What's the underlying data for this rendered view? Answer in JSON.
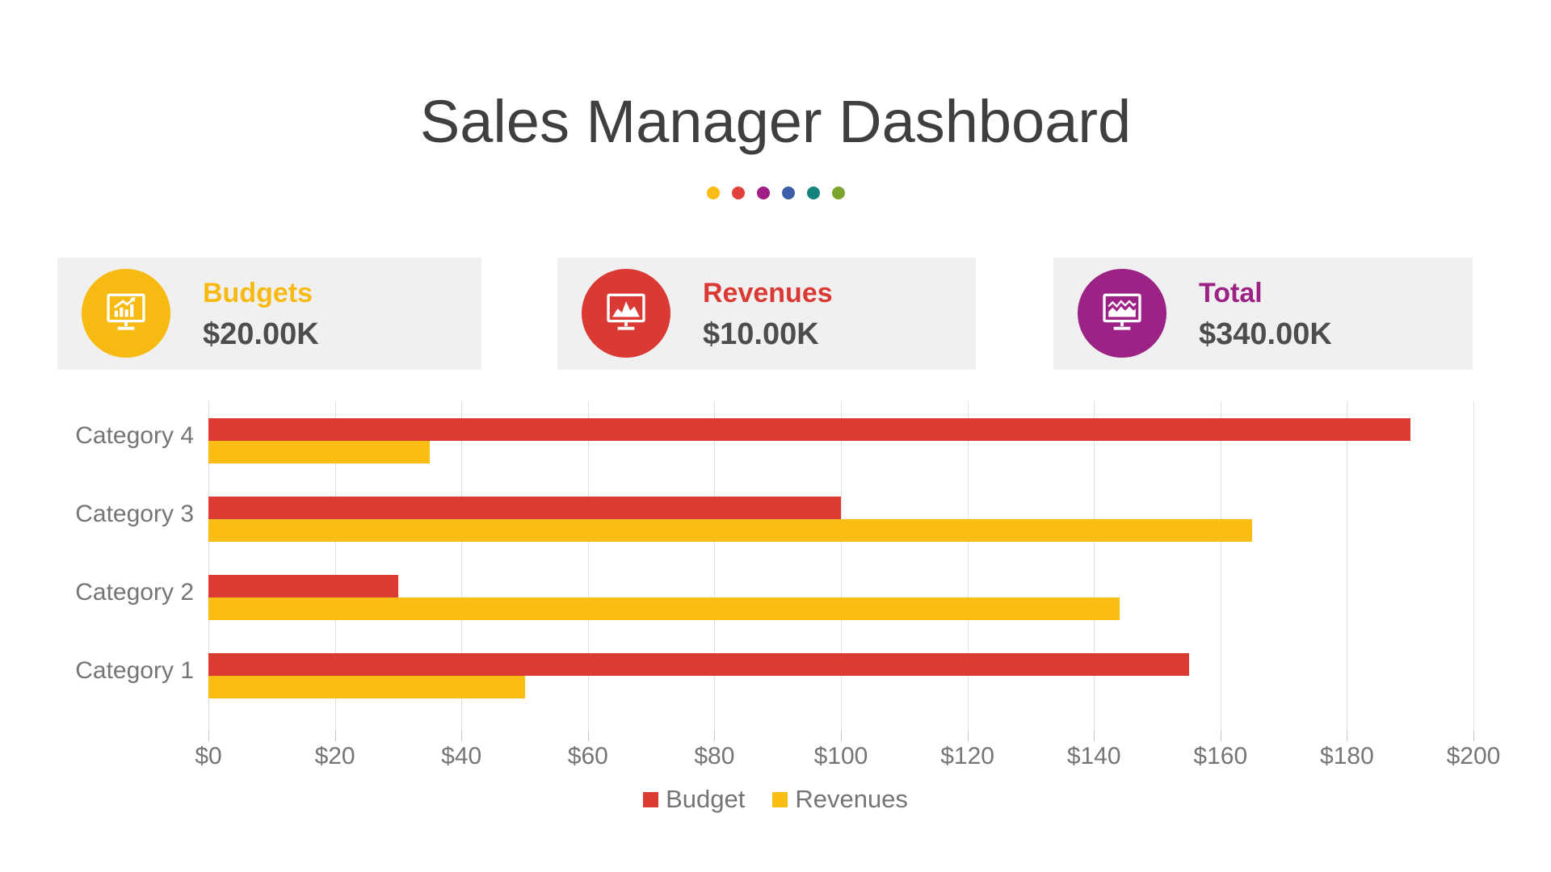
{
  "page": {
    "title": "Sales Manager Dashboard"
  },
  "decoration": {
    "dot_colors": [
      "#f9bc15",
      "#e2413b",
      "#a21e87",
      "#3d5da9",
      "#14837e",
      "#7aa52d"
    ]
  },
  "kpi_cards": [
    {
      "label": "Budgets",
      "value": "$20.00K",
      "accent": "#f7ba12",
      "icon": "bar-chart-monitor-icon"
    },
    {
      "label": "Revenues",
      "value": "$10.00K",
      "accent": "#db3a34",
      "icon": "area-chart-monitor-icon"
    },
    {
      "label": "Total",
      "value": "$340.00K",
      "accent": "#9c2286",
      "icon": "line-chart-monitor-icon"
    }
  ],
  "chart_data": {
    "type": "bar",
    "orientation": "horizontal",
    "title": "",
    "xlabel": "",
    "ylabel": "",
    "categories": [
      "Category 4",
      "Category 3",
      "Category 2",
      "Category 1"
    ],
    "series": [
      {
        "name": "Budget",
        "color": "#db3b33",
        "values": [
          190,
          100,
          30,
          155
        ]
      },
      {
        "name": "Revenues",
        "color": "#fabd13",
        "values": [
          35,
          165,
          144,
          50
        ]
      }
    ],
    "xlim": [
      0,
      200
    ],
    "x_tick_values": [
      0,
      20,
      40,
      60,
      80,
      100,
      120,
      140,
      160,
      180,
      200
    ],
    "x_tick_labels": [
      "$0",
      "$20",
      "$40",
      "$60",
      "$80",
      "$100",
      "$120",
      "$140",
      "$160",
      "$180",
      "$200"
    ],
    "grid": "vertical",
    "legend_position": "bottom",
    "legend": [
      {
        "label": "Budget",
        "color": "#db3b33"
      },
      {
        "label": "Revenues",
        "color": "#fabd13"
      }
    ]
  }
}
